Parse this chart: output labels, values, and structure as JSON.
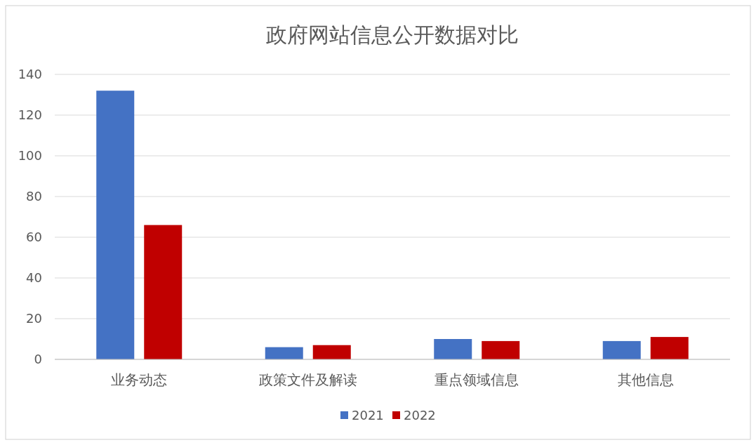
{
  "chart_data": {
    "type": "bar",
    "title": "政府网站信息公开数据对比",
    "categories": [
      "业务动态",
      "政策文件及解读",
      "重点领域信息",
      "其他信息"
    ],
    "series": [
      {
        "name": "2021",
        "color": "#4472c4",
        "values": [
          132,
          6,
          10,
          9
        ]
      },
      {
        "name": "2022",
        "color": "#c00000",
        "values": [
          66,
          7,
          9,
          11
        ]
      }
    ],
    "ylim": [
      0,
      140
    ],
    "yticks": [
      0,
      20,
      40,
      60,
      80,
      100,
      120,
      140
    ],
    "grid": "y",
    "legend": "bottom"
  }
}
